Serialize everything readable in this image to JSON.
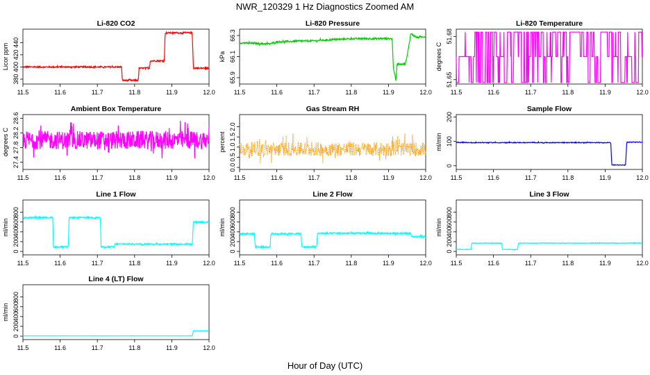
{
  "figure": {
    "title": "NWR_120329  1 Hz Diagnostics Zoomed AM",
    "xlabel": "Hour of Day (UTC)"
  },
  "chart_data": [
    {
      "id": "co2",
      "type": "line",
      "title": "Li-820 CO2",
      "ylabel": "Licor ppm",
      "color": "#ff0000",
      "xlim": [
        11.5,
        12.0
      ],
      "ylim": [
        372,
        462
      ],
      "xticks": [
        11.5,
        11.6,
        11.7,
        11.8,
        11.9,
        12.0
      ],
      "yticks": [
        380,
        400,
        420,
        440
      ],
      "ytick_labels": [
        "380",
        "400",
        "420",
        "440"
      ],
      "x": [
        11.5,
        11.765,
        11.767,
        11.81,
        11.812,
        11.84,
        11.842,
        11.88,
        11.882,
        11.955,
        11.958,
        12.0
      ],
      "y": [
        400,
        400,
        378,
        378,
        398,
        398,
        410,
        410,
        456,
        456,
        398,
        398
      ],
      "noise": 1.2
    },
    {
      "id": "press",
      "type": "line",
      "title": "Li-820 Pressure",
      "ylabel": "kPa",
      "color": "#00cc00",
      "xlim": [
        11.5,
        12.0
      ],
      "ylim": [
        65.84,
        66.36
      ],
      "xticks": [
        11.5,
        11.6,
        11.7,
        11.8,
        11.9,
        12.0
      ],
      "yticks": [
        65.9,
        66.1,
        66.3
      ],
      "ytick_labels": [
        "65.9",
        "66.1",
        "66.3"
      ],
      "x": [
        11.5,
        11.58,
        11.6,
        11.7,
        11.8,
        11.9,
        11.91,
        11.913,
        11.92,
        11.923,
        11.945,
        11.95,
        11.96,
        11.975,
        12.0
      ],
      "y": [
        66.23,
        66.22,
        66.24,
        66.25,
        66.27,
        66.27,
        66.27,
        66.0,
        65.87,
        66.03,
        66.03,
        66.1,
        66.32,
        66.28,
        66.29
      ],
      "noise": 0.008
    },
    {
      "id": "temp",
      "type": "line",
      "title": "Li-820 Temperature",
      "ylabel": "degrees C",
      "color": "#ff00ff",
      "xlim": [
        11.5,
        12.0
      ],
      "ylim": [
        51.647,
        51.685
      ],
      "xticks": [
        11.5,
        11.6,
        11.7,
        11.8,
        11.9,
        12.0
      ],
      "yticks": [
        51.65,
        51.68
      ],
      "ytick_labels": [
        "51.65",
        "51.68"
      ],
      "levels": [
        51.648,
        51.666,
        51.683
      ],
      "switching": true
    },
    {
      "id": "boxtemp",
      "type": "line",
      "title": "Ambient Box Temperature",
      "ylabel": "degrees C",
      "color": "#ff00ff",
      "xlim": [
        11.5,
        12.0
      ],
      "ylim": [
        27.2,
        28.7
      ],
      "xticks": [
        11.5,
        11.6,
        11.7,
        11.8,
        11.9,
        12.0
      ],
      "yticks": [
        27.4,
        27.8,
        28.2,
        28.6
      ],
      "ytick_labels": [
        "27.4",
        "27.8",
        "28.2",
        "28.6"
      ],
      "x": [
        11.5,
        12.0
      ],
      "y": [
        28.0,
        28.0
      ],
      "noise": 0.25
    },
    {
      "id": "rh",
      "type": "line",
      "title": "Gas Stream RH",
      "ylabel": "percent",
      "color": "#ff9900",
      "dotted": true,
      "xlim": [
        11.5,
        12.0
      ],
      "ylim": [
        -0.1,
        2.6
      ],
      "xticks": [
        11.5,
        11.6,
        11.7,
        11.8,
        11.9,
        12.0
      ],
      "yticks": [
        0.0,
        0.5,
        1.0,
        1.5,
        2.0
      ],
      "ytick_labels": [
        "0.0",
        "0.5",
        "1.0",
        "1.5",
        "2.0"
      ],
      "x": [
        11.5,
        12.0
      ],
      "y": [
        0.9,
        0.9
      ],
      "noise": 0.35
    },
    {
      "id": "sflow",
      "type": "line",
      "title": "Sample Flow",
      "ylabel": "ml/min",
      "color": "#0000ff",
      "xlim": [
        11.5,
        12.0
      ],
      "ylim": [
        -15,
        210
      ],
      "xticks": [
        11.5,
        11.6,
        11.7,
        11.8,
        11.9,
        12.0
      ],
      "yticks": [
        0,
        100,
        200
      ],
      "ytick_labels": [
        "0",
        "100",
        "200"
      ],
      "x": [
        11.5,
        11.915,
        11.918,
        11.955,
        11.958,
        12.0
      ],
      "y": [
        95,
        95,
        3,
        3,
        97,
        97
      ],
      "noise": 1.5
    },
    {
      "id": "l1",
      "type": "line",
      "title": "Line 1 Flow",
      "ylabel": "ml/min",
      "color": "#00ffff",
      "xlim": [
        11.5,
        12.0
      ],
      "ylim": [
        -70,
        1050
      ],
      "xticks": [
        11.5,
        11.6,
        11.7,
        11.8,
        11.9,
        12.0
      ],
      "yticks": [
        0,
        200,
        400,
        600,
        800
      ],
      "ytick_labels": [
        "0",
        "200",
        "400",
        "600",
        "800"
      ],
      "x": [
        11.5,
        11.58,
        11.582,
        11.622,
        11.624,
        11.708,
        11.71,
        11.745,
        11.747,
        11.955,
        11.958,
        12.0
      ],
      "y": [
        690,
        690,
        90,
        90,
        690,
        690,
        90,
        90,
        150,
        150,
        600,
        600
      ],
      "noise": 15
    },
    {
      "id": "l2",
      "type": "line",
      "title": "Line 2 Flow",
      "ylabel": "ml/min",
      "color": "#00ffff",
      "xlim": [
        11.5,
        12.0
      ],
      "ylim": [
        -70,
        1050
      ],
      "xticks": [
        11.5,
        11.6,
        11.7,
        11.8,
        11.9,
        12.0
      ],
      "yticks": [
        0,
        200,
        400,
        600,
        800
      ],
      "ytick_labels": [
        "0",
        "200",
        "400",
        "600",
        "800"
      ],
      "x": [
        11.5,
        11.54,
        11.542,
        11.582,
        11.584,
        11.665,
        11.667,
        11.707,
        11.709,
        11.96,
        11.962,
        12.0
      ],
      "y": [
        360,
        360,
        90,
        90,
        360,
        360,
        90,
        90,
        370,
        370,
        300,
        300
      ],
      "noise": 18
    },
    {
      "id": "l3",
      "type": "line",
      "title": "Line 3 Flow",
      "ylabel": "ml/min",
      "color": "#00ffff",
      "xlim": [
        11.5,
        12.0
      ],
      "ylim": [
        -70,
        1050
      ],
      "xticks": [
        11.5,
        11.6,
        11.7,
        11.8,
        11.9,
        12.0
      ],
      "yticks": [
        0,
        200,
        400,
        600,
        800
      ],
      "ytick_labels": [
        "0",
        "200",
        "400",
        "600",
        "800"
      ],
      "x": [
        11.5,
        11.54,
        11.542,
        11.622,
        11.624,
        11.665,
        11.667,
        12.0
      ],
      "y": [
        40,
        40,
        170,
        170,
        40,
        40,
        170,
        170
      ],
      "noise": 5
    },
    {
      "id": "l4",
      "type": "line",
      "title": "Line 4 (LT) Flow",
      "ylabel": "ml/min",
      "color": "#00ffff",
      "xlim": [
        11.5,
        12.0
      ],
      "ylim": [
        -70,
        1050
      ],
      "xticks": [
        11.5,
        11.6,
        11.7,
        11.8,
        11.9,
        12.0
      ],
      "yticks": [
        0,
        200,
        400,
        600,
        800
      ],
      "ytick_labels": [
        "0",
        "200",
        "400",
        "600",
        "800"
      ],
      "x": [
        11.5,
        11.955,
        11.958,
        12.0
      ],
      "y": [
        5,
        5,
        110,
        110
      ],
      "noise": 2
    }
  ]
}
